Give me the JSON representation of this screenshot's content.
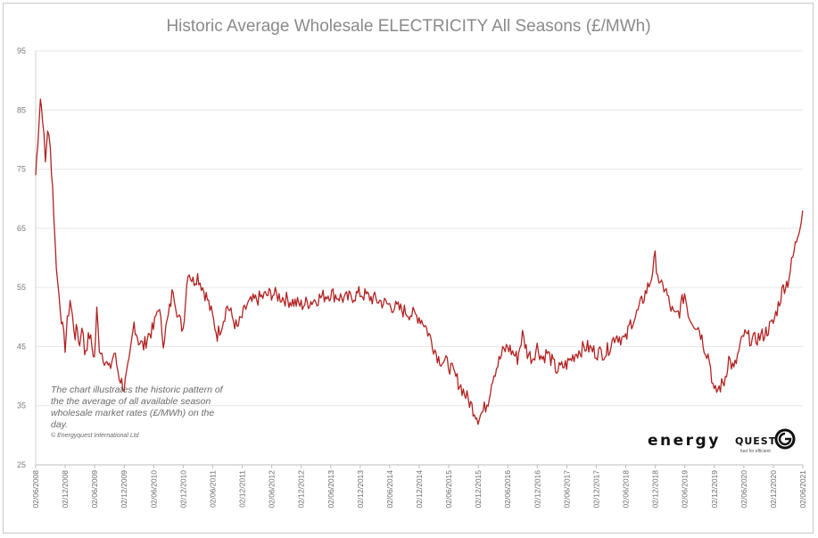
{
  "chart_data": {
    "type": "line",
    "title": "Historic Average Wholesale ELECTRICITY All Seasons (£/MWh)",
    "xlabel": "",
    "ylabel": "",
    "ylim": [
      25,
      95
    ],
    "y_ticks": [
      25,
      35,
      45,
      55,
      65,
      75,
      85,
      95
    ],
    "grid": true,
    "line_color": "#b22222",
    "x_tick_labels": [
      "02/06/2008",
      "02/12/2008",
      "02/06/2009",
      "02/12/2009",
      "02/06/2010",
      "02/12/2010",
      "02/06/2011",
      "02/12/2011",
      "02/06/2012",
      "02/12/2012",
      "02/06/2013",
      "02/12/2013",
      "02/06/2014",
      "02/12/2014",
      "02/06/2015",
      "02/12/2015",
      "02/06/2016",
      "02/12/2016",
      "02/06/2017",
      "02/12/2017",
      "02/06/2018",
      "02/12/2018",
      "02/06/2019",
      "02/12/2019",
      "02/06/2020",
      "02/12/2020",
      "02/06/2021"
    ],
    "series": [
      {
        "x": [
          "2008-06-02",
          "2008-06-15",
          "2008-07-01",
          "2008-07-15",
          "2008-08-01",
          "2008-08-15",
          "2008-09-01",
          "2008-09-15",
          "2008-10-01",
          "2008-10-15",
          "2008-11-01",
          "2008-11-15",
          "2008-12-01",
          "2008-12-15",
          "2009-01-01",
          "2009-01-15",
          "2009-02-01",
          "2009-02-15",
          "2009-03-01",
          "2009-03-15",
          "2009-04-01",
          "2009-05-01",
          "2009-06-01",
          "2009-06-15",
          "2009-07-01",
          "2009-08-01",
          "2009-09-01",
          "2009-10-01",
          "2009-11-01",
          "2009-12-01",
          "2010-01-01",
          "2010-02-01",
          "2010-03-01",
          "2010-04-01",
          "2010-05-01",
          "2010-06-01",
          "2010-07-01",
          "2010-08-01",
          "2010-09-01",
          "2010-10-01",
          "2010-11-01",
          "2010-12-01",
          "2011-01-01",
          "2011-02-01",
          "2011-03-01",
          "2011-04-01",
          "2011-05-01",
          "2011-06-01",
          "2011-07-01",
          "2011-08-01",
          "2011-09-01",
          "2011-10-01",
          "2011-11-01",
          "2011-12-01",
          "2012-01-01",
          "2012-03-01",
          "2012-06-01",
          "2012-09-01",
          "2012-12-01",
          "2013-03-01",
          "2013-06-01",
          "2013-09-01",
          "2013-12-01",
          "2014-03-01",
          "2014-06-01",
          "2014-09-01",
          "2014-12-01",
          "2015-01-01",
          "2015-02-01",
          "2015-03-01",
          "2015-04-01",
          "2015-06-01",
          "2015-08-01",
          "2015-10-01",
          "2015-12-01",
          "2016-01-01",
          "2016-02-01",
          "2016-03-01",
          "2016-04-01",
          "2016-05-01",
          "2016-06-01",
          "2016-08-01",
          "2016-09-01",
          "2016-10-01",
          "2016-11-01",
          "2016-12-01",
          "2017-01-01",
          "2017-02-01",
          "2017-04-01",
          "2017-06-01",
          "2017-08-01",
          "2017-10-01",
          "2017-12-01",
          "2018-02-01",
          "2018-04-01",
          "2018-06-01",
          "2018-07-01",
          "2018-08-01",
          "2018-09-01",
          "2018-10-01",
          "2018-11-01",
          "2018-12-01",
          "2019-01-01",
          "2019-02-01",
          "2019-03-01",
          "2019-04-01",
          "2019-05-01",
          "2019-06-01",
          "2019-07-01",
          "2019-08-01",
          "2019-09-01",
          "2019-10-01",
          "2019-11-01",
          "2019-12-01",
          "2020-01-01",
          "2020-02-01",
          "2020-03-01",
          "2020-04-01",
          "2020-05-01",
          "2020-06-01",
          "2020-08-01",
          "2020-10-01",
          "2020-12-01",
          "2021-01-01",
          "2021-02-01",
          "2021-03-01",
          "2021-04-01",
          "2021-05-01",
          "2021-06-01"
        ],
        "values": [
          74,
          80,
          87,
          84,
          76,
          82,
          78,
          72,
          62,
          56,
          52,
          48,
          45,
          49,
          53,
          50,
          47,
          48,
          45,
          49,
          44,
          47,
          43,
          51,
          45,
          43,
          41,
          44,
          40,
          38,
          42,
          49,
          46,
          45,
          47,
          48,
          52,
          46,
          50,
          55,
          50,
          48,
          58,
          56,
          57,
          55,
          53,
          50,
          47,
          49,
          52,
          50,
          48,
          50,
          52,
          53,
          54,
          53,
          52,
          53,
          54,
          53,
          54,
          53,
          52,
          51,
          50,
          49,
          47,
          45,
          43,
          42,
          39,
          36,
          33,
          34,
          36,
          40,
          42,
          44,
          45,
          43,
          47,
          44,
          43,
          45,
          43,
          44,
          41,
          42,
          44,
          45,
          44,
          44,
          47,
          46,
          49,
          50,
          52,
          54,
          56,
          60,
          55,
          55,
          52,
          50,
          51,
          54,
          50,
          49,
          48,
          45,
          43,
          37,
          38,
          39,
          43,
          41,
          44,
          47,
          46,
          47,
          49,
          52,
          55,
          56,
          60,
          64,
          68
        ]
      }
    ]
  },
  "annotation": {
    "text": "The chart illustrates the historic pattern of the the average of all available season wholesale market rates (£/MWh) on the day.",
    "copyright": "© Energyquest International Ltd"
  },
  "logo": {
    "word": "energy",
    "word2": "QUEST",
    "tagline": "fuel for efficient"
  }
}
